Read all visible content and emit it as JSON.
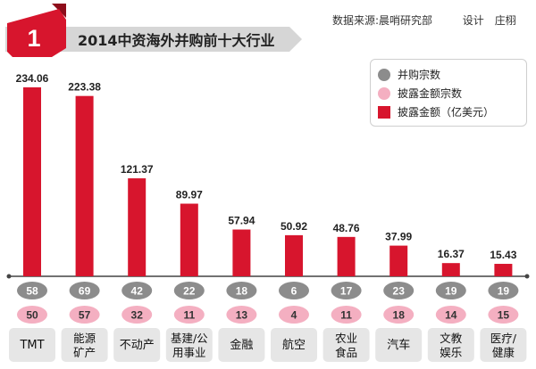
{
  "chart_data": {
    "type": "bar",
    "title": "2014中资海外并购前十大行业",
    "badge": "1",
    "source": "数据来源:晨哨研究部",
    "credit": "设计　庄栩",
    "categories": [
      "TMT",
      "能源/矿产",
      "不动产",
      "基建/公用事业",
      "金融",
      "航空",
      "农业食品",
      "汽车",
      "文教娱乐",
      "医疗/健康"
    ],
    "category_lines": [
      [
        "TMT"
      ],
      [
        "能源",
        "矿产"
      ],
      [
        "不动产"
      ],
      [
        "基建/公",
        "用事业"
      ],
      [
        "金融"
      ],
      [
        "航空"
      ],
      [
        "农业",
        "食品"
      ],
      [
        "汽车"
      ],
      [
        "文教",
        "娱乐"
      ],
      [
        "医疗/",
        "健康"
      ]
    ],
    "series": [
      {
        "name": "并购宗数",
        "values": [
          58,
          69,
          42,
          22,
          18,
          6,
          17,
          23,
          19,
          19
        ]
      },
      {
        "name": "披露金额宗数",
        "values": [
          50,
          57,
          32,
          11,
          13,
          4,
          11,
          18,
          14,
          15
        ]
      },
      {
        "name": "披露金额（亿美元）",
        "values": [
          234.06,
          223.38,
          121.37,
          89.97,
          57.94,
          50.92,
          48.76,
          37.99,
          16.37,
          15.43
        ]
      }
    ],
    "ylim": [
      0,
      234.06
    ],
    "colors": {
      "bar": "#d7152d",
      "gray": "#8c8c8c",
      "pink": "#f4afc1",
      "banner": "#d6d6d6",
      "label_box": "#e6e6e6"
    }
  }
}
